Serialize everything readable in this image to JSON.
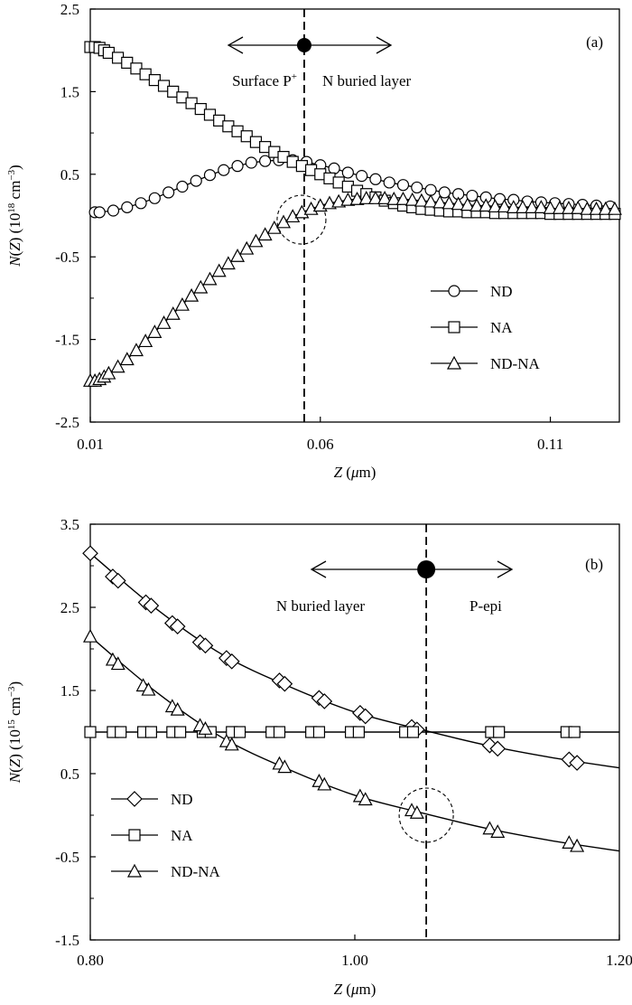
{
  "chart_data": [
    {
      "type": "line",
      "panel_label": "(a)",
      "xlabel": "Z (μm)",
      "ylabel": "N(Z) (10^18 cm^-3)",
      "ylabel_parts": {
        "main": "N(Z) (10",
        "exp": "18",
        "unit": " cm",
        "unit_exp": "−3",
        "close": ")"
      },
      "xlim": [
        0.01,
        0.125
      ],
      "ylim": [
        -2.5,
        2.5
      ],
      "xticks": [
        0.01,
        0.06,
        0.11
      ],
      "xtick_labels": [
        "0.01",
        "0.06",
        "0.11"
      ],
      "yticks": [
        -2.5,
        -1.5,
        -0.5,
        0.5,
        1.5,
        2.5
      ],
      "ytick_labels": [
        "-2.5",
        "-1.5",
        "-0.5",
        "0.5",
        "1.5",
        "2.5"
      ],
      "legend_placement": "bottom-right",
      "grid": false,
      "annotations": {
        "left_region": "Surface P",
        "left_region_sup": "+",
        "right_region": "N buried layer",
        "junction_x": 0.0565
      },
      "series": [
        {
          "name": "ND",
          "marker": "circle",
          "x": [
            0.011,
            0.012,
            0.015,
            0.018,
            0.021,
            0.024,
            0.027,
            0.03,
            0.033,
            0.036,
            0.039,
            0.042,
            0.045,
            0.048,
            0.051,
            0.054,
            0.057,
            0.06,
            0.063,
            0.066,
            0.069,
            0.072,
            0.075,
            0.078,
            0.081,
            0.084,
            0.087,
            0.09,
            0.093,
            0.096,
            0.099,
            0.102,
            0.105,
            0.108,
            0.111,
            0.114,
            0.117,
            0.12,
            0.123
          ],
          "y": [
            0.04,
            0.04,
            0.06,
            0.1,
            0.15,
            0.21,
            0.28,
            0.35,
            0.42,
            0.49,
            0.55,
            0.6,
            0.64,
            0.66,
            0.67,
            0.67,
            0.65,
            0.61,
            0.57,
            0.52,
            0.48,
            0.44,
            0.4,
            0.37,
            0.34,
            0.31,
            0.28,
            0.26,
            0.24,
            0.22,
            0.2,
            0.19,
            0.17,
            0.16,
            0.15,
            0.14,
            0.13,
            0.12,
            0.11
          ]
        },
        {
          "name": "NA",
          "marker": "square",
          "x": [
            0.01,
            0.011,
            0.012,
            0.013,
            0.014,
            0.016,
            0.018,
            0.02,
            0.022,
            0.024,
            0.026,
            0.028,
            0.03,
            0.032,
            0.034,
            0.036,
            0.038,
            0.04,
            0.042,
            0.044,
            0.046,
            0.048,
            0.05,
            0.052,
            0.054,
            0.056,
            0.058,
            0.06,
            0.062,
            0.064,
            0.066,
            0.068,
            0.07,
            0.072,
            0.074,
            0.076,
            0.078,
            0.08,
            0.082,
            0.084,
            0.086,
            0.088,
            0.09,
            0.092,
            0.094,
            0.096,
            0.098,
            0.1,
            0.102,
            0.104,
            0.106,
            0.108,
            0.11,
            0.112,
            0.114,
            0.116,
            0.118,
            0.12,
            0.122,
            0.124
          ],
          "y": [
            2.04,
            2.04,
            2.03,
            2.0,
            1.97,
            1.91,
            1.85,
            1.78,
            1.71,
            1.64,
            1.57,
            1.5,
            1.43,
            1.36,
            1.29,
            1.22,
            1.15,
            1.08,
            1.02,
            0.96,
            0.89,
            0.83,
            0.77,
            0.71,
            0.65,
            0.6,
            0.55,
            0.5,
            0.45,
            0.4,
            0.35,
            0.3,
            0.26,
            0.22,
            0.18,
            0.15,
            0.12,
            0.1,
            0.08,
            0.07,
            0.06,
            0.05,
            0.05,
            0.04,
            0.04,
            0.04,
            0.03,
            0.03,
            0.03,
            0.03,
            0.03,
            0.03,
            0.02,
            0.02,
            0.02,
            0.02,
            0.02,
            0.02,
            0.02,
            0.02
          ]
        },
        {
          "name": "ND-NA",
          "marker": "triangle",
          "x": [
            0.01,
            0.011,
            0.012,
            0.013,
            0.014,
            0.016,
            0.018,
            0.02,
            0.022,
            0.024,
            0.026,
            0.028,
            0.03,
            0.032,
            0.034,
            0.036,
            0.038,
            0.04,
            0.042,
            0.044,
            0.046,
            0.048,
            0.05,
            0.052,
            0.054,
            0.056,
            0.058,
            0.06,
            0.062,
            0.064,
            0.066,
            0.068,
            0.07,
            0.072,
            0.074,
            0.076,
            0.078,
            0.08,
            0.082,
            0.084,
            0.086,
            0.088,
            0.09,
            0.092,
            0.094,
            0.096,
            0.098,
            0.1,
            0.102,
            0.104,
            0.106,
            0.108,
            0.11,
            0.112,
            0.114,
            0.116,
            0.118,
            0.12,
            0.122,
            0.124
          ],
          "y": [
            -2.0,
            -2.0,
            -1.98,
            -1.95,
            -1.91,
            -1.83,
            -1.74,
            -1.63,
            -1.52,
            -1.41,
            -1.3,
            -1.19,
            -1.08,
            -0.97,
            -0.87,
            -0.77,
            -0.67,
            -0.58,
            -0.49,
            -0.4,
            -0.31,
            -0.23,
            -0.15,
            -0.08,
            -0.01,
            0.04,
            0.08,
            0.12,
            0.15,
            0.17,
            0.19,
            0.2,
            0.21,
            0.21,
            0.21,
            0.2,
            0.2,
            0.19,
            0.18,
            0.17,
            0.16,
            0.15,
            0.14,
            0.13,
            0.12,
            0.12,
            0.11,
            0.11,
            0.1,
            0.1,
            0.1,
            0.1,
            0.09,
            0.09,
            0.09,
            0.09,
            0.08,
            0.08,
            0.08,
            0.08
          ]
        }
      ]
    },
    {
      "type": "line",
      "panel_label": "(b)",
      "xlabel": "Z (μm)",
      "ylabel": "N(Z) (10^15 cm^-3)",
      "ylabel_parts": {
        "main": "N(Z) (10",
        "exp": "15",
        "unit": " cm",
        "unit_exp": "−3",
        "close": ")"
      },
      "xlim": [
        0.8,
        1.2
      ],
      "ylim": [
        -1.5,
        3.5
      ],
      "xticks": [
        0.8,
        1.0,
        1.2
      ],
      "xtick_labels": [
        "0.80",
        "1.00",
        "1.20"
      ],
      "yticks": [
        -1.5,
        -0.5,
        0.5,
        1.5,
        2.5,
        3.5
      ],
      "ytick_labels": [
        "-1.5",
        "-0.5",
        "0.5",
        "1.5",
        "2.5",
        "3.5"
      ],
      "legend_placement": "bottom-left",
      "grid": false,
      "annotations": {
        "left_region": "N buried layer",
        "right_region": "P-epi",
        "junction_x": 1.054
      },
      "series": [
        {
          "name": "ND",
          "marker": "diamond",
          "x": [
            0.8,
            0.817,
            0.821,
            0.842,
            0.846,
            0.862,
            0.866,
            0.883,
            0.887,
            0.903,
            0.907,
            0.943,
            0.947,
            0.973,
            0.977,
            1.004,
            1.008,
            1.043,
            1.047,
            1.102,
            1.108,
            1.162,
            1.168
          ],
          "y": [
            3.15,
            2.87,
            2.82,
            2.56,
            2.52,
            2.31,
            2.27,
            2.08,
            2.04,
            1.89,
            1.85,
            1.62,
            1.58,
            1.41,
            1.37,
            1.23,
            1.19,
            1.06,
            1.03,
            0.84,
            0.8,
            0.67,
            0.63
          ]
        },
        {
          "name": "NA",
          "marker": "square",
          "x": [
            0.8,
            0.817,
            0.823,
            0.84,
            0.846,
            0.862,
            0.868,
            0.885,
            0.891,
            0.907,
            0.913,
            0.937,
            0.943,
            0.967,
            0.973,
            0.997,
            1.003,
            1.038,
            1.044,
            1.103,
            1.109,
            1.16,
            1.166
          ],
          "y": [
            1.0,
            1.0,
            1.0,
            1.0,
            1.0,
            1.0,
            1.0,
            1.0,
            1.0,
            1.0,
            1.0,
            1.0,
            1.0,
            1.0,
            1.0,
            1.0,
            1.0,
            1.0,
            1.0,
            1.0,
            1.0,
            1.0,
            1.0
          ]
        },
        {
          "name": "ND-NA",
          "marker": "triangle",
          "x": [
            0.8,
            0.817,
            0.821,
            0.84,
            0.844,
            0.862,
            0.866,
            0.883,
            0.887,
            0.903,
            0.907,
            0.943,
            0.947,
            0.973,
            0.977,
            1.004,
            1.008,
            1.043,
            1.047,
            1.102,
            1.108,
            1.162,
            1.168
          ],
          "y": [
            2.15,
            1.87,
            1.82,
            1.56,
            1.51,
            1.31,
            1.27,
            1.08,
            1.04,
            0.89,
            0.85,
            0.62,
            0.58,
            0.41,
            0.37,
            0.23,
            0.19,
            0.06,
            0.03,
            -0.16,
            -0.2,
            -0.33,
            -0.37
          ]
        }
      ],
      "fit_curves": [
        {
          "name": "ND",
          "x": [
            0.8,
            0.85,
            0.9,
            0.95,
            1.0,
            1.05,
            1.1,
            1.15,
            1.2
          ],
          "y": [
            3.15,
            2.48,
            1.93,
            1.55,
            1.24,
            1.03,
            0.84,
            0.69,
            0.57
          ]
        },
        {
          "name": "NA",
          "x": [
            0.8,
            1.2
          ],
          "y": [
            1.0,
            1.0
          ]
        },
        {
          "name": "ND-NA",
          "x": [
            0.8,
            0.85,
            0.9,
            0.95,
            1.0,
            1.05,
            1.1,
            1.15,
            1.2
          ],
          "y": [
            2.15,
            1.48,
            0.93,
            0.55,
            0.24,
            0.03,
            -0.16,
            -0.31,
            -0.43
          ]
        }
      ]
    }
  ]
}
